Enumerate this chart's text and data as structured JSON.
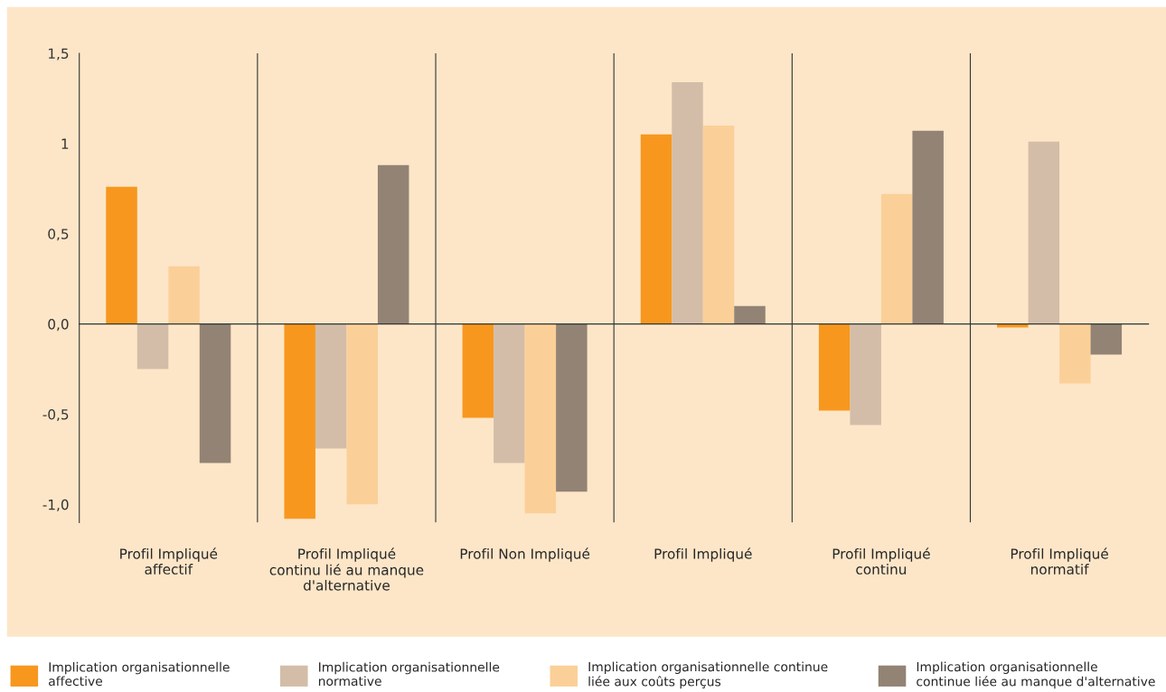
{
  "chart_data": {
    "type": "bar",
    "categories": [
      "Profil Impliqué\naffectif",
      "Profil Impliqué\ncontinu lié au manque\nd'alternative",
      "Profil Non Impliqué",
      "Profil Impliqué",
      "Profil Impliqué\ncontinu",
      "Profil Impliqué\nnormatif"
    ],
    "series": [
      {
        "name": "Implication organisationnelle\naffective",
        "color": "#f7971e",
        "values": [
          0.76,
          -1.08,
          -0.52,
          1.05,
          -0.48,
          -0.02
        ]
      },
      {
        "name": "Implication organisationnelle\nnormative",
        "color": "#d3bda8",
        "values": [
          -0.25,
          -0.69,
          -0.77,
          1.34,
          -0.56,
          1.01
        ]
      },
      {
        "name": "Implication organisationnelle continue\nliée aux coûts perçus",
        "color": "#fbcf98",
        "values": [
          0.32,
          -1.0,
          -1.05,
          1.1,
          0.72,
          -0.33
        ]
      },
      {
        "name": "Implication organisationnelle\ncontinue liée au manque d'alternative",
        "color": "#928375",
        "values": [
          -0.77,
          0.88,
          -0.93,
          0.1,
          1.07,
          -0.17
        ]
      }
    ],
    "ylim": [
      -1.1,
      1.5
    ],
    "yticks": [
      {
        "value": 1.5,
        "label": "1,5"
      },
      1,
      {
        "value": 0.5,
        "label": "0,5"
      },
      {
        "value": 0,
        "label": "0,0"
      },
      {
        "value": -0.5,
        "label": "-0,5"
      },
      {
        "value": -1.0,
        "label": "-1,0"
      }
    ],
    "legend": "bottom"
  }
}
